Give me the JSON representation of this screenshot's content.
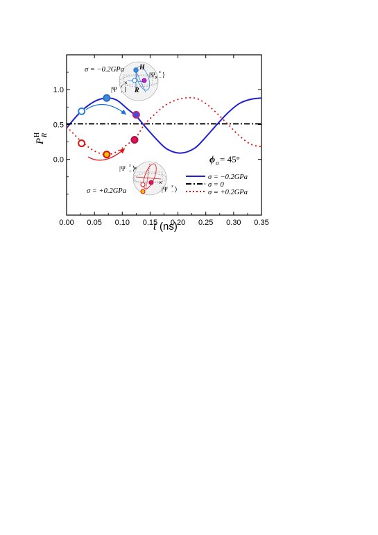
{
  "chart_data": {
    "type": "line",
    "xlabel_var": "t",
    "xlabel_unit": "(ns)",
    "ylabel_main": "P",
    "ylabel_sub": "R",
    "ylabel_sup": "H",
    "xlim": [
      0.0,
      0.35
    ],
    "ylim": [
      -0.8,
      1.5
    ],
    "x_ticks": [
      "0.00",
      "0.05",
      "0.10",
      "0.15",
      "0.20",
      "0.25",
      "0.30",
      "0.35"
    ],
    "x_tick_values": [
      0.0,
      0.05,
      0.1,
      0.15,
      0.2,
      0.25,
      0.3,
      0.35
    ],
    "y_ticks": [
      "0.0",
      "0.5",
      "1.0"
    ],
    "y_tick_values": [
      0.0,
      0.5,
      1.0
    ],
    "grid": false,
    "legend_placement": "lower-right",
    "phi_label_sym": "ϕ",
    "phi_label_sub": "σ",
    "phi_label_value": " = 45°",
    "series": [
      {
        "name": "σ = −0.2GPa",
        "style": "solid",
        "color": "#1f1fd6",
        "x": [
          0.0,
          0.025,
          0.05,
          0.072,
          0.09,
          0.11,
          0.125,
          0.14,
          0.16,
          0.18,
          0.205,
          0.23,
          0.25,
          0.27,
          0.29,
          0.31,
          0.33,
          0.35
        ],
        "y": [
          0.45,
          0.68,
          0.83,
          0.88,
          0.85,
          0.72,
          0.62,
          0.48,
          0.3,
          0.15,
          0.09,
          0.16,
          0.32,
          0.5,
          0.67,
          0.8,
          0.86,
          0.88
        ]
      },
      {
        "name": "σ = 0",
        "style": "dashdot",
        "color": "#000000",
        "x": [
          0.0,
          0.35
        ],
        "y": [
          0.51,
          0.51
        ]
      },
      {
        "name": "σ = +0.2GPa",
        "style": "dotted",
        "color": "#e01010",
        "x": [
          0.0,
          0.025,
          0.05,
          0.072,
          0.09,
          0.11,
          0.125,
          0.14,
          0.16,
          0.18,
          0.205,
          0.23,
          0.25,
          0.27,
          0.29,
          0.31,
          0.33,
          0.35
        ],
        "y": [
          0.47,
          0.27,
          0.12,
          0.07,
          0.11,
          0.22,
          0.32,
          0.5,
          0.66,
          0.79,
          0.87,
          0.88,
          0.8,
          0.66,
          0.5,
          0.34,
          0.22,
          0.18
        ]
      }
    ],
    "markers_top": [
      {
        "x": 0.027,
        "y": 0.69,
        "fill": "#ffffff",
        "stroke": "#2a7fd8"
      },
      {
        "x": 0.072,
        "y": 0.88,
        "fill": "#3d8be0",
        "stroke": "#2a6fc0"
      },
      {
        "x": 0.125,
        "y": 0.64,
        "fill": "#3a4fe0",
        "stroke": "#c02080"
      }
    ],
    "markers_bottom": [
      {
        "x": 0.027,
        "y": 0.23,
        "fill": "#ffffff",
        "stroke": "#e01010"
      },
      {
        "x": 0.072,
        "y": 0.07,
        "fill": "#f0c000",
        "stroke": "#e01010"
      },
      {
        "x": 0.122,
        "y": 0.28,
        "fill": "#e0105a",
        "stroke": "#b01040"
      }
    ],
    "annotations": {
      "top_sigma": "σ = −0.2GPa",
      "bottom_sigma": "σ = +0.2GPa",
      "H": "H",
      "R": "R",
      "psi_plus_top": "|Ψ",
      "psi_minus_top": "|Ψ",
      "psi_plus_bottom": "|Ψ",
      "psi_minus_bottom": "|Ψ",
      "psi_sup": "x",
      "psi_sub_plus": "+",
      "psi_sub_minus": "−",
      "ket_close": "⟩"
    }
  }
}
